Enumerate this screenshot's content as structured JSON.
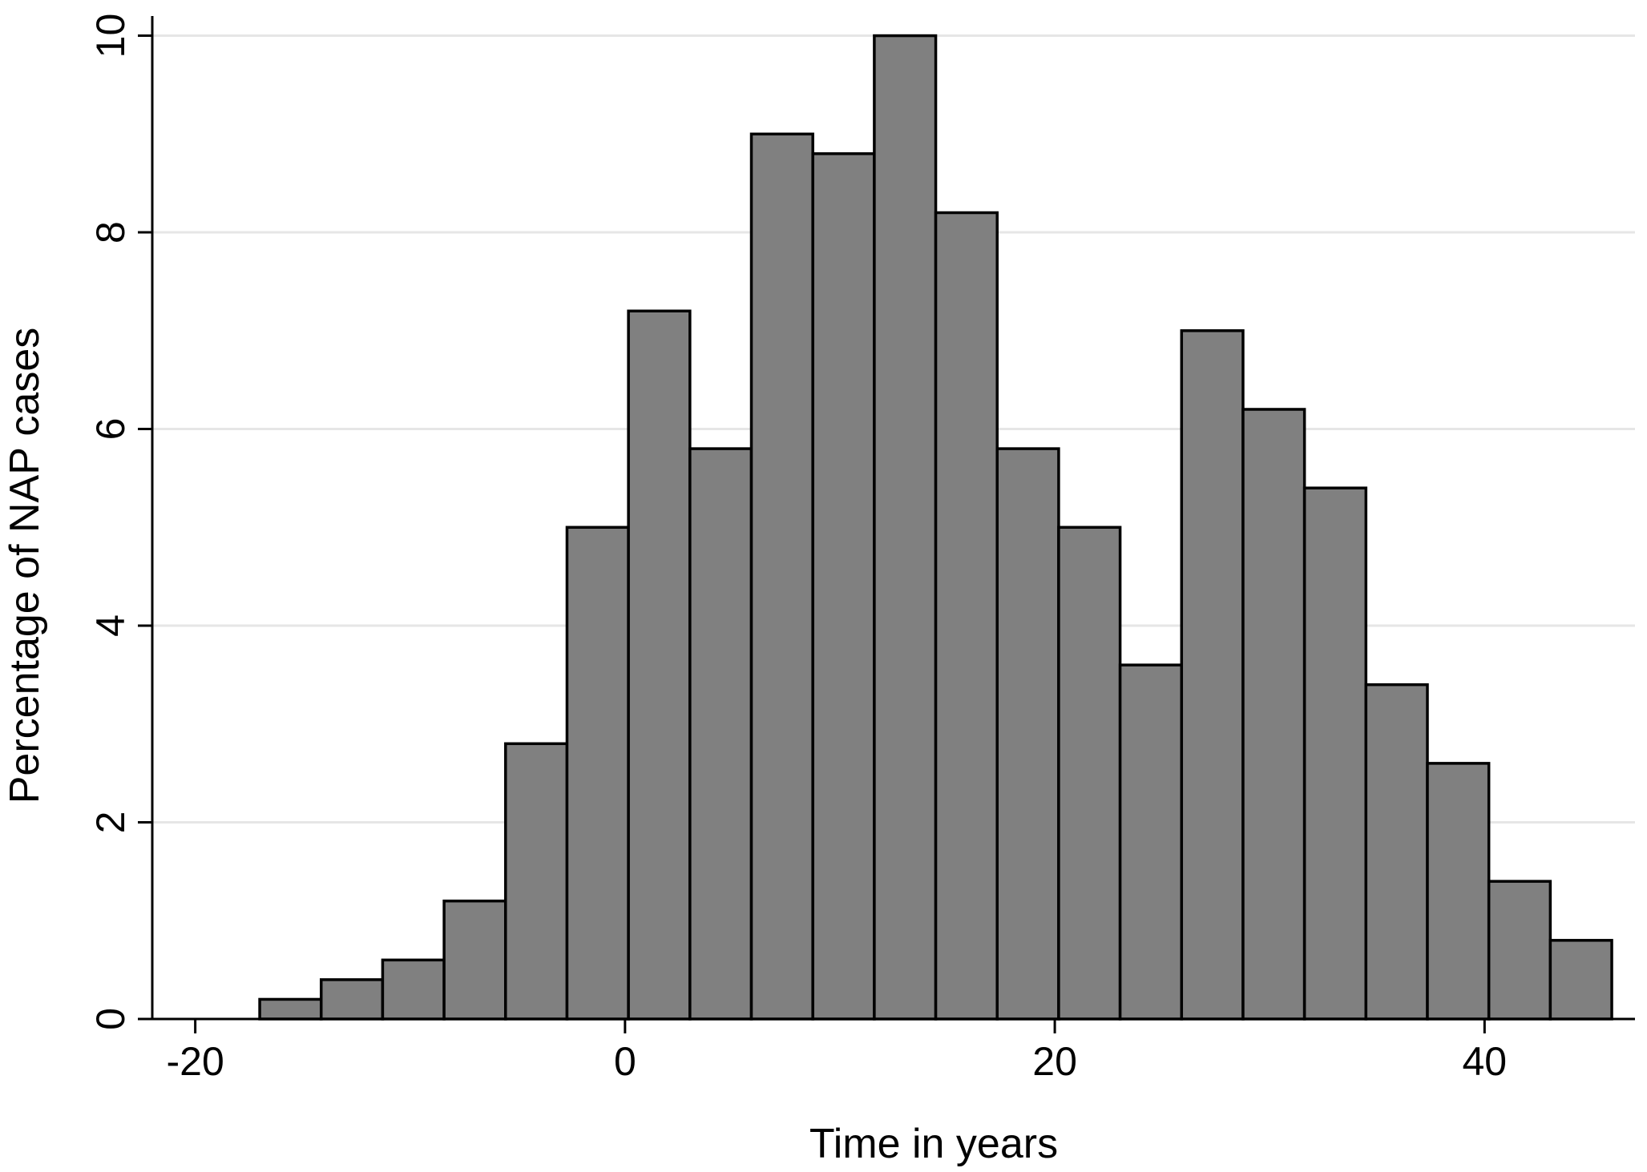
{
  "chart_data": {
    "type": "bar",
    "subtype": "histogram",
    "xlabel": "Time in years",
    "ylabel": "Percentage of NAP cases",
    "xlim": [
      -22,
      47
    ],
    "ylim": [
      0,
      10.2
    ],
    "xticks": [
      -20,
      0,
      20,
      40
    ],
    "yticks": [
      0,
      2,
      4,
      6,
      8,
      10
    ],
    "grid": true,
    "legend": "none",
    "bar_color": "#808080",
    "bar_edge_color": "#000000",
    "bin_width": 2.86,
    "bin_start": -17,
    "values": [
      0.2,
      0.4,
      0.6,
      1.2,
      2.8,
      5.0,
      7.2,
      5.8,
      9.0,
      8.8,
      10.0,
      8.2,
      5.8,
      5.0,
      3.6,
      7.0,
      6.2,
      5.4,
      3.4,
      2.6,
      1.4,
      0.8
    ]
  }
}
